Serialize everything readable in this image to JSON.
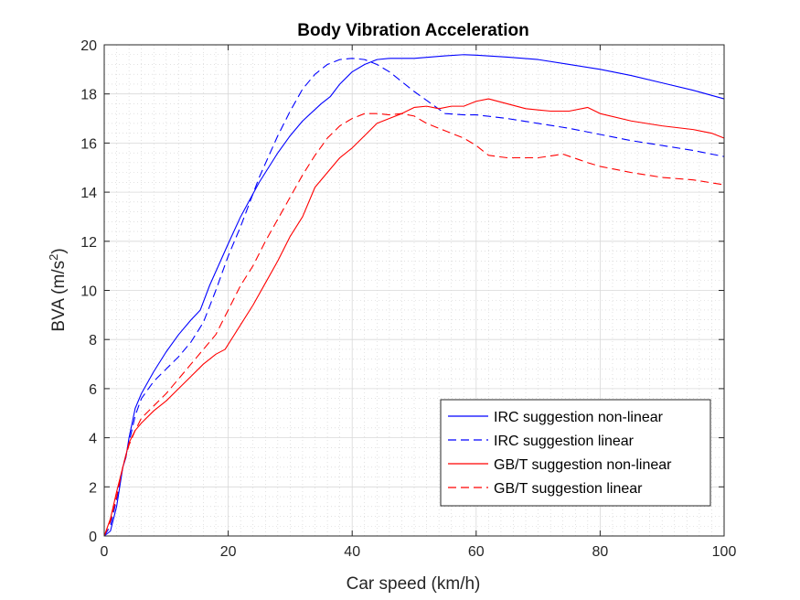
{
  "chart_data": {
    "type": "line",
    "title": "Body Vibration Acceleration",
    "xlabel": "Car speed (km/h)",
    "ylabel_main": "BVA (m/s",
    "ylabel_sup": "2",
    "ylabel_close": ")",
    "xlim": [
      0,
      100
    ],
    "ylim": [
      0,
      20
    ],
    "xticks": [
      "0",
      "20",
      "40",
      "60",
      "80",
      "100"
    ],
    "yticks": [
      "0",
      "2",
      "4",
      "6",
      "8",
      "10",
      "12",
      "14",
      "16",
      "18",
      "20"
    ],
    "grid": true,
    "minor_grid": true,
    "legend_position": "bottom-right",
    "colors": {
      "blue": "#0000ff",
      "red": "#ff0000",
      "axis": "#262626",
      "grid": "#dcdcdc"
    },
    "series": [
      {
        "name": "IRC suggestion non-linear",
        "color": "#0000ff",
        "style": "solid",
        "x": [
          0,
          1,
          2,
          3,
          3.5,
          4,
          5,
          6,
          8,
          10,
          12,
          14,
          15.5,
          17,
          20,
          22,
          25,
          28,
          30,
          32,
          35,
          36.5,
          38,
          40,
          42,
          44,
          46,
          48,
          50,
          55,
          58,
          60,
          65,
          70,
          75,
          80,
          85,
          90,
          95,
          100
        ],
        "y": [
          0,
          0.2,
          1.2,
          2.8,
          3.2,
          4.0,
          5.2,
          5.8,
          6.7,
          7.5,
          8.2,
          8.8,
          9.2,
          10.2,
          11.9,
          13.0,
          14.4,
          15.6,
          16.3,
          16.9,
          17.6,
          17.9,
          18.4,
          18.9,
          19.2,
          19.4,
          19.45,
          19.45,
          19.45,
          19.55,
          19.6,
          19.58,
          19.5,
          19.4,
          19.2,
          19.0,
          18.75,
          18.45,
          18.15,
          17.8
        ]
      },
      {
        "name": "IRC suggestion linear",
        "color": "#0000ff",
        "style": "dashed",
        "x": [
          0,
          1,
          2,
          3,
          4,
          5,
          6,
          8,
          10,
          12,
          14,
          16,
          18,
          20,
          22,
          25,
          28,
          30,
          32,
          34,
          36,
          38,
          40,
          42,
          44,
          46,
          48,
          50,
          55,
          58,
          60,
          65,
          70,
          75,
          80,
          85,
          90,
          95,
          100
        ],
        "y": [
          0,
          0.4,
          1.5,
          2.8,
          3.8,
          4.9,
          5.6,
          6.3,
          6.8,
          7.3,
          7.9,
          8.7,
          10.0,
          11.4,
          12.6,
          14.6,
          16.3,
          17.3,
          18.2,
          18.8,
          19.2,
          19.4,
          19.45,
          19.4,
          19.2,
          18.9,
          18.5,
          18.1,
          17.2,
          17.15,
          17.15,
          17.0,
          16.8,
          16.6,
          16.35,
          16.1,
          15.9,
          15.7,
          15.45
        ]
      },
      {
        "name": "GB/T suggestion non-linear",
        "color": "#ff0000",
        "style": "solid",
        "x": [
          0,
          1,
          2,
          3,
          4,
          5,
          6,
          8,
          10,
          12,
          14,
          16,
          18,
          19.5,
          22,
          24,
          26,
          28,
          30,
          32,
          34,
          36,
          38,
          40,
          42,
          44,
          46,
          48,
          50,
          52,
          54,
          56,
          58,
          60,
          62,
          65,
          68,
          70,
          72,
          75,
          78,
          80,
          85,
          90,
          95,
          98,
          100
        ],
        "y": [
          0,
          0.7,
          1.8,
          2.8,
          3.8,
          4.3,
          4.6,
          5.1,
          5.5,
          6.0,
          6.5,
          7.0,
          7.4,
          7.6,
          8.6,
          9.4,
          10.3,
          11.2,
          12.2,
          13.0,
          14.2,
          14.8,
          15.4,
          15.8,
          16.3,
          16.8,
          17.0,
          17.2,
          17.45,
          17.5,
          17.4,
          17.5,
          17.5,
          17.7,
          17.8,
          17.6,
          17.4,
          17.35,
          17.3,
          17.3,
          17.45,
          17.2,
          16.9,
          16.7,
          16.55,
          16.4,
          16.2
        ]
      },
      {
        "name": "GB/T suggestion linear",
        "color": "#ff0000",
        "style": "dashed",
        "x": [
          0,
          1,
          2,
          3,
          4,
          5,
          6,
          8,
          10,
          12,
          14,
          16,
          18,
          20,
          22,
          24,
          26,
          28,
          30,
          32,
          34,
          36,
          38,
          40,
          42,
          44,
          46,
          48,
          50,
          52,
          55,
          58,
          60,
          62,
          65,
          70,
          74,
          78,
          80,
          85,
          90,
          95,
          100
        ],
        "y": [
          0,
          0.6,
          1.6,
          2.8,
          3.7,
          4.3,
          4.8,
          5.3,
          5.8,
          6.4,
          7.0,
          7.6,
          8.2,
          9.2,
          10.2,
          11.0,
          12.0,
          12.9,
          13.8,
          14.7,
          15.5,
          16.2,
          16.7,
          17.0,
          17.2,
          17.2,
          17.15,
          17.2,
          17.1,
          16.8,
          16.5,
          16.2,
          15.9,
          15.5,
          15.4,
          15.4,
          15.55,
          15.2,
          15.05,
          14.8,
          14.6,
          14.5,
          14.3
        ]
      }
    ]
  }
}
